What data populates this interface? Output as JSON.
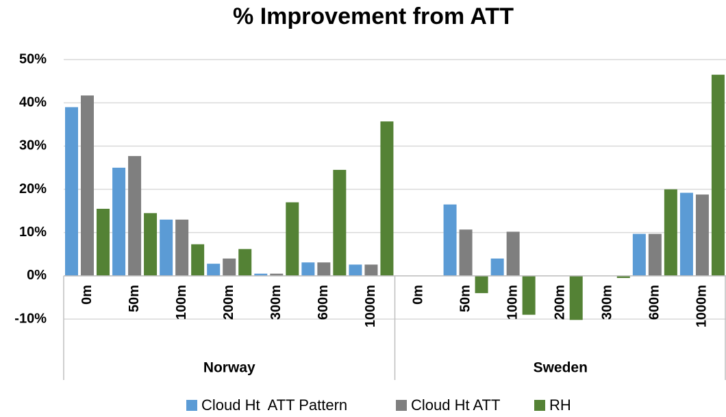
{
  "chart_data": {
    "type": "bar",
    "title": "% Improvement from ATT",
    "categories": [
      "0m",
      "50m",
      "100m",
      "200m",
      "300m",
      "600m",
      "1000m",
      "0m",
      "50m",
      "100m",
      "200m",
      "300m",
      "600m",
      "1000m"
    ],
    "groups": [
      "Norway",
      "Sweden"
    ],
    "series": [
      {
        "name": "Cloud Ht  ATT Pattern",
        "color": "#5b9bd5",
        "values": [
          39,
          25,
          13,
          2.8,
          0.5,
          3.1,
          2.6,
          0,
          16.5,
          4,
          0,
          0,
          9.7,
          19.2
        ]
      },
      {
        "name": "Cloud Ht ATT",
        "color": "#7f7f7f",
        "values": [
          41.7,
          27.7,
          13,
          4,
          0.5,
          3.1,
          2.6,
          0,
          10.7,
          10.2,
          0,
          0,
          9.7,
          18.8
        ]
      },
      {
        "name": "RH",
        "color": "#548235",
        "values": [
          15.5,
          14.5,
          7.3,
          6.2,
          17,
          24.5,
          35.7,
          0,
          -4,
          -9,
          -10.2,
          -0.5,
          20,
          46.5
        ]
      }
    ],
    "ylim": [
      -10,
      50
    ],
    "yticks": [
      {
        "value": -10,
        "label": "-10%"
      },
      {
        "value": 0,
        "label": "0%"
      },
      {
        "value": 10,
        "label": "10%"
      },
      {
        "value": 20,
        "label": "20%"
      },
      {
        "value": 30,
        "label": "30%"
      },
      {
        "value": 40,
        "label": "40%"
      },
      {
        "value": 50,
        "label": "50%"
      }
    ],
    "grid": true
  }
}
